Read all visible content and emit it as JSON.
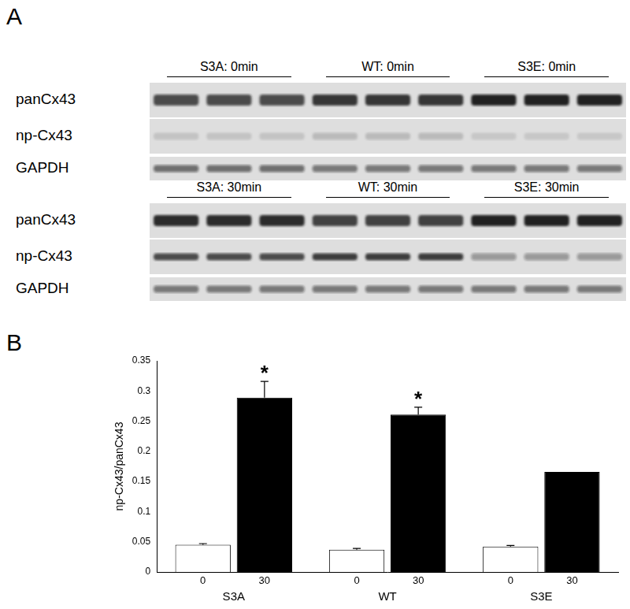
{
  "panel_labels": [
    "A",
    "B"
  ],
  "blots": [
    {
      "groups": [
        "S3A: 0min",
        "WT: 0min",
        "S3E: 0min"
      ],
      "rows": [
        "panCx43",
        "np-Cx43",
        "GAPDH"
      ]
    },
    {
      "groups": [
        "S3A: 30min",
        "WT: 30min",
        "S3E: 30min"
      ],
      "rows": [
        "panCx43",
        "np-Cx43",
        "GAPDH"
      ]
    }
  ],
  "chart_data": {
    "type": "bar",
    "y_label": "np-Cx43/panCx43",
    "categories": [
      "S3A",
      "WT",
      "S3E"
    ],
    "series": [
      {
        "name": "0",
        "color": "#ffffff",
        "values": [
          0.045,
          0.037,
          0.042
        ],
        "errors": [
          0.002,
          0.002,
          0.002
        ]
      },
      {
        "name": "30",
        "color": "#000000",
        "values": [
          0.289,
          0.261,
          0.166
        ],
        "errors": [
          0.027,
          0.012,
          null
        ]
      }
    ],
    "annotations": [
      {
        "text": "*",
        "category": "S3A",
        "series": "30"
      },
      {
        "text": "*",
        "category": "WT",
        "series": "30"
      }
    ],
    "ylim": [
      0,
      0.35
    ],
    "yticks": [
      0,
      0.05,
      0.1,
      0.15,
      0.2,
      0.25,
      0.3,
      0.35
    ],
    "grid": false
  }
}
